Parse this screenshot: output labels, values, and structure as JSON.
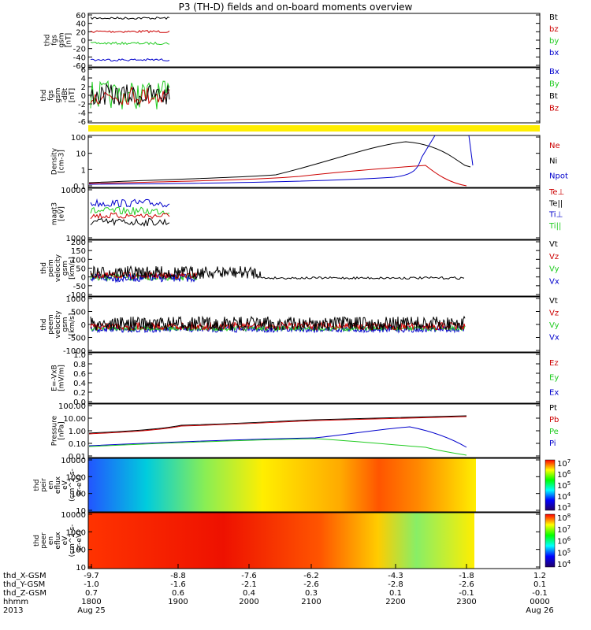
{
  "title": "P3 (TH-D) fields and on-board moments overview",
  "colors": {
    "black": "#000000",
    "red": "#cc0000",
    "green": "#22cc22",
    "blue": "#0000cc",
    "yellow": "#ffee00"
  },
  "chart_data": {
    "type": "line",
    "x_ticks": [
      "1800",
      "1900",
      "2000",
      "2100",
      "2200",
      "2300",
      "0000"
    ],
    "dates": {
      "start": "Aug 25",
      "end": "Aug 26"
    },
    "year": "2013",
    "position_table": {
      "labels": [
        "thd_X-GSM",
        "thd_Y-GSM",
        "thd_Z-GSM",
        "hhmm",
        "2013"
      ],
      "x_values": [
        "-9.7",
        "-8.8",
        "-7.6",
        "-6.2",
        "-4.3",
        "-1.8",
        "1.2"
      ],
      "y_values": [
        "-1.0",
        "-1.6",
        "-2.1",
        "-2.6",
        "-2.8",
        "-2.6",
        "0.1"
      ],
      "z_values": [
        "0.7",
        "0.6",
        "0.4",
        "0.3",
        "0.1",
        "-0.1",
        "-0.1"
      ]
    },
    "panels": [
      {
        "id": "fgs",
        "ylabel": [
          "thd",
          "fgs",
          "gsm",
          "[nT]"
        ],
        "yticks": [
          "60",
          "40",
          "20",
          "0",
          "-20",
          "-40",
          "-60"
        ],
        "legend": [
          "Bt",
          "bz",
          "by",
          "bx"
        ],
        "series": [
          {
            "name": "Bt",
            "level": 52
          },
          {
            "name": "bz",
            "level": 23
          },
          {
            "name": "by",
            "level": -5
          },
          {
            "name": "bx",
            "level": -42
          }
        ]
      },
      {
        "id": "fgs-dBt",
        "ylabel": [
          "thd",
          "fgs",
          "gsm",
          "-dBt",
          "[nT]"
        ],
        "yticks": [
          "6",
          "4",
          "2",
          "0",
          "-2",
          "-4",
          "-6"
        ],
        "legend": [
          "Bx",
          "By",
          "Bt",
          "Bz"
        ]
      },
      {
        "id": "density",
        "ylabel": [
          "Density",
          "[cm-3]"
        ],
        "yticks": [
          "100",
          "10",
          "1",
          "0.1"
        ],
        "legend": [
          "Ne",
          "Ni",
          "Npot"
        ]
      },
      {
        "id": "temperature",
        "ylabel": [
          "magt3",
          "[eV]"
        ],
        "yticks": [
          "10000",
          "1000"
        ],
        "legend": [
          "Te⊥",
          "Te||",
          "Ti⊥",
          "Ti||"
        ]
      },
      {
        "id": "peim-velocity",
        "ylabel": [
          "thd",
          "peim",
          "velocity",
          "gsm",
          "[km/s]"
        ],
        "yticks": [
          "200",
          "150",
          "100",
          "50",
          "0",
          "-50",
          "-100"
        ],
        "legend": [
          "Vt",
          "Vz",
          "Vy",
          "Vx"
        ]
      },
      {
        "id": "peem-velocity",
        "ylabel": [
          "thd",
          "peem",
          "velocity",
          "gsm",
          "[km/s]"
        ],
        "yticks": [
          "1000",
          "500",
          "0",
          "-500",
          "-1000"
        ],
        "legend": [
          "Vt",
          "Vz",
          "Vy",
          "Vx"
        ]
      },
      {
        "id": "efield",
        "ylabel": [
          "E=-VxB",
          "[mV/m]"
        ],
        "yticks": [
          "1.0",
          "0.8",
          "0.6",
          "0.4",
          "0.2",
          "0.0"
        ],
        "legend": [
          "Ez",
          "Ey",
          "Ex"
        ]
      },
      {
        "id": "pressure",
        "ylabel": [
          "Pressure",
          "[nPa]"
        ],
        "yticks": [
          "100.00",
          "10.00",
          "1.00",
          "0.10",
          "0.01"
        ],
        "legend": [
          "Pt",
          "Pb",
          "Pe",
          "Pi"
        ]
      },
      {
        "id": "peir-spec",
        "ylabel": [
          "thd",
          "peir",
          "en",
          "eflux",
          "eV",
          "(cm^2-s-",
          "sr-eV)"
        ],
        "yticks": [
          "10000",
          "1000",
          "100",
          "10"
        ],
        "colorbar": [
          "10^7",
          "10^6",
          "10^5",
          "10^4",
          "10^3"
        ]
      },
      {
        "id": "peer-spec",
        "ylabel": [
          "thd",
          "peer",
          "en",
          "eflux",
          "eV",
          "(cm^2-s-",
          "sr-eV)"
        ],
        "yticks": [
          "10000",
          "1000",
          "100",
          "10"
        ],
        "colorbar": [
          "10^8",
          "10^7",
          "10^6",
          "10^5",
          "10^4"
        ]
      }
    ]
  }
}
